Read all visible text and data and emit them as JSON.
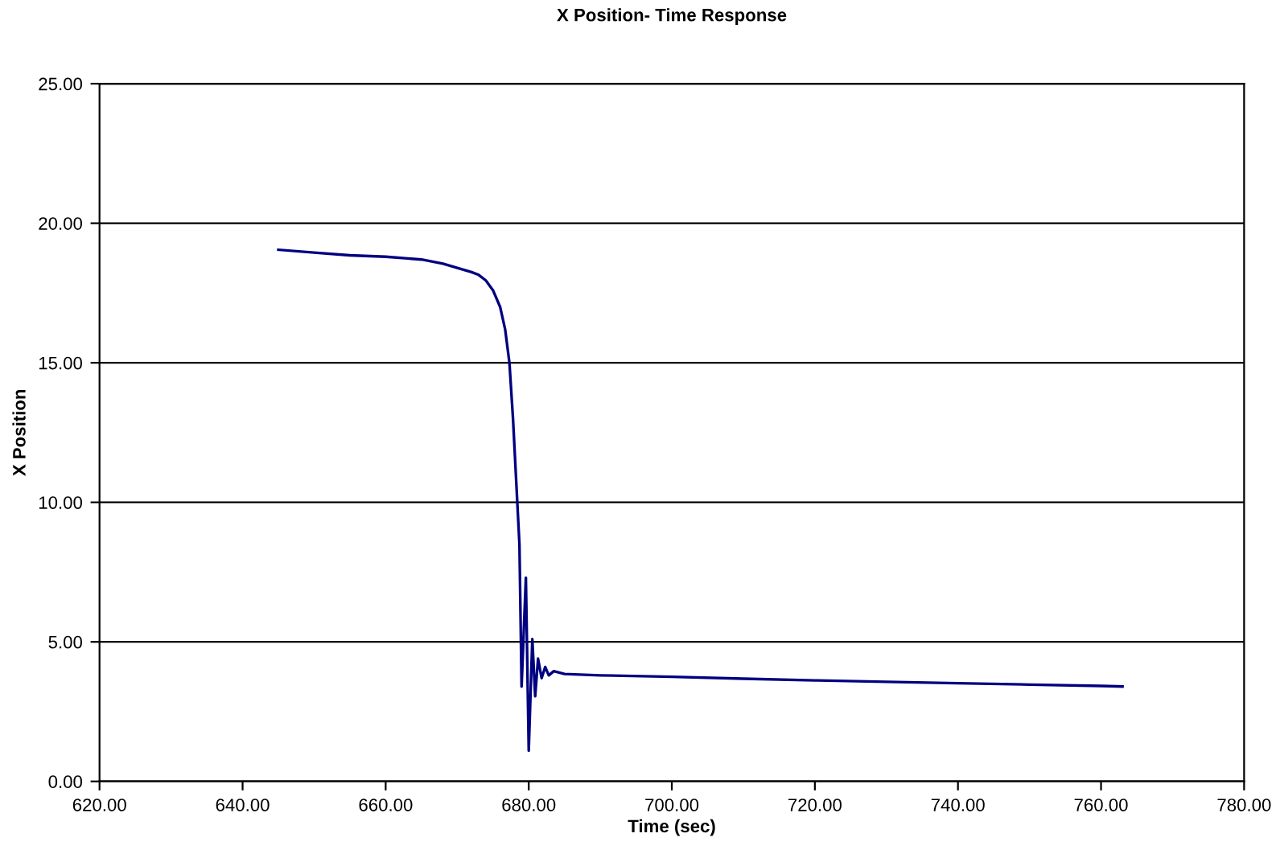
{
  "chart_data": {
    "type": "line",
    "title": "X Position- Time Response",
    "xlabel": "Time (sec)",
    "ylabel": "X Position",
    "xlim": [
      620,
      780
    ],
    "xticks": [
      {
        "value": 620,
        "label": "620.00"
      },
      {
        "value": 640,
        "label": "640.00"
      },
      {
        "value": 660,
        "label": "660.00"
      },
      {
        "value": 680,
        "label": "680.00"
      },
      {
        "value": 700,
        "label": "700.00"
      },
      {
        "value": 720,
        "label": "720.00"
      },
      {
        "value": 740,
        "label": "740.00"
      },
      {
        "value": 760,
        "label": "760.00"
      },
      {
        "value": 780,
        "label": "780.00"
      }
    ],
    "ylim": [
      0,
      25
    ],
    "yticks": [
      {
        "value": 0,
        "label": "0.00"
      },
      {
        "value": 5,
        "label": "5.00"
      },
      {
        "value": 10,
        "label": "10.00"
      },
      {
        "value": 15,
        "label": "15.00"
      },
      {
        "value": 20,
        "label": "20.00"
      },
      {
        "value": 25,
        "label": "25.00"
      }
    ],
    "grid": "y",
    "marker": "none",
    "line_style": "solid",
    "series": [
      {
        "color": "#000080",
        "x": [
          645,
          650,
          655,
          660,
          665,
          668,
          670,
          672,
          673,
          674,
          675,
          676,
          676.7,
          677.3,
          677.8,
          678.2,
          678.7,
          679.0,
          679.6,
          680.0,
          680.5,
          680.9,
          681.3,
          681.8,
          682.3,
          682.8,
          683.5,
          685,
          690,
          700,
          710,
          720,
          730,
          740,
          750,
          760,
          763
        ],
        "values": [
          19.05,
          18.95,
          18.85,
          18.8,
          18.7,
          18.55,
          18.4,
          18.25,
          18.15,
          17.95,
          17.6,
          17.0,
          16.2,
          15.0,
          13.0,
          11.0,
          8.5,
          3.4,
          7.3,
          1.1,
          5.1,
          3.05,
          4.4,
          3.7,
          4.1,
          3.8,
          3.95,
          3.85,
          3.8,
          3.75,
          3.68,
          3.62,
          3.57,
          3.52,
          3.47,
          3.42,
          3.4
        ]
      }
    ]
  }
}
